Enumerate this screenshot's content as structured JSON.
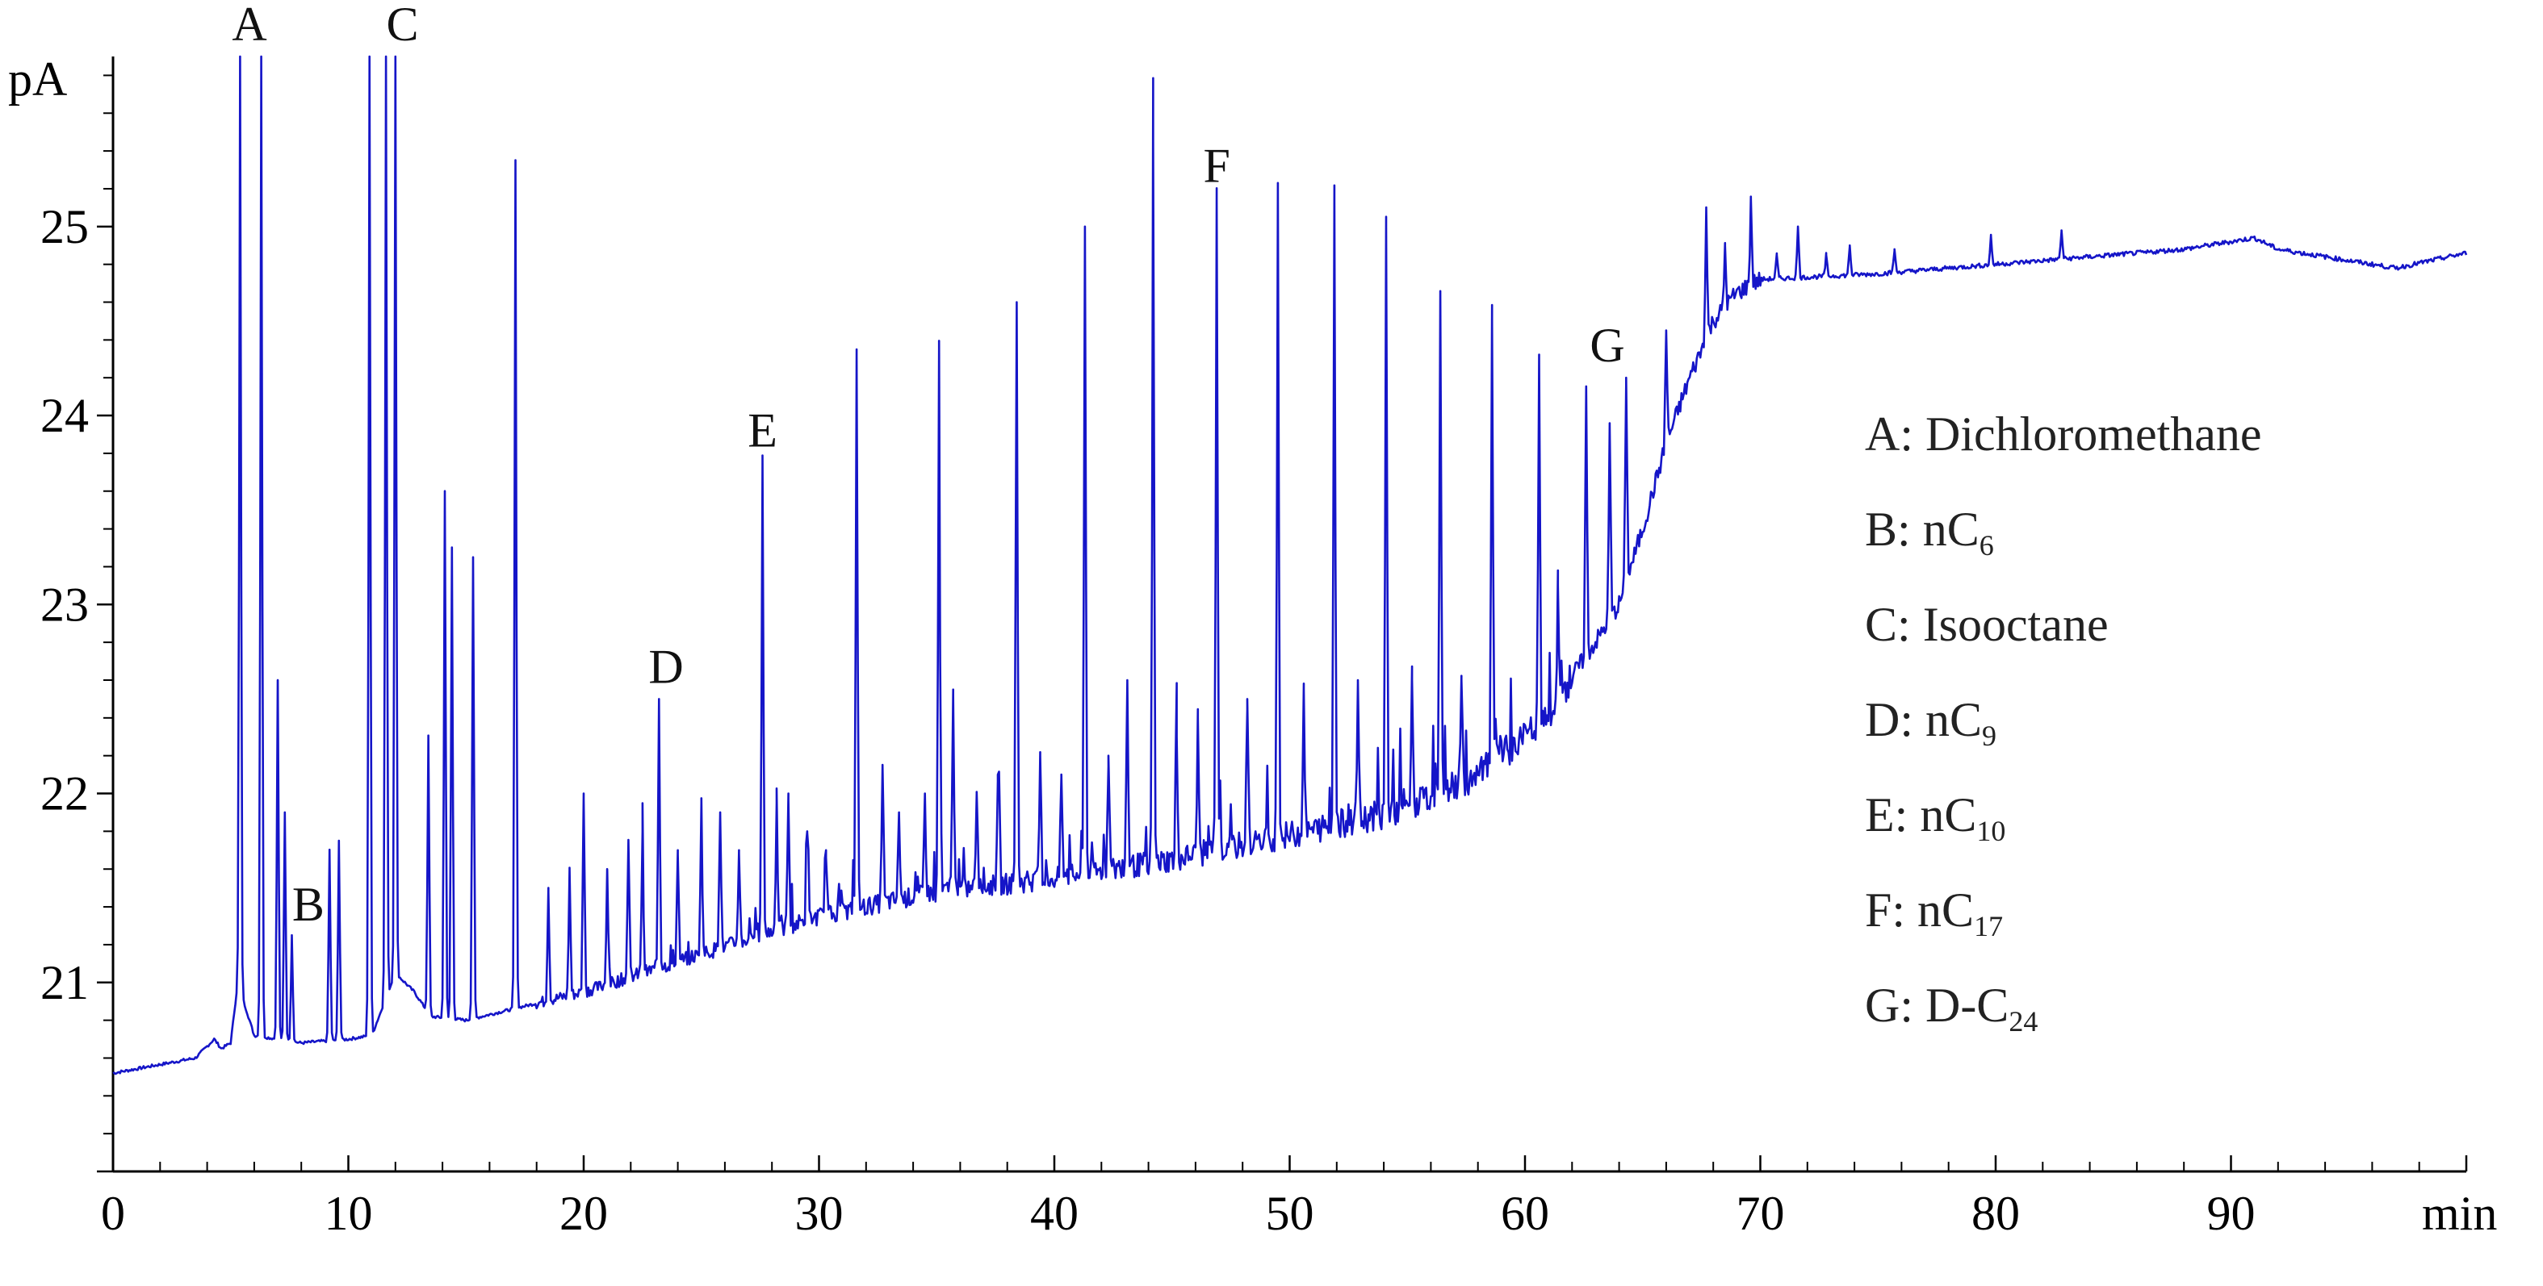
{
  "chart_data": {
    "type": "line",
    "title": "",
    "xlabel": "min",
    "ylabel": "pA",
    "xlim": [
      0,
      100
    ],
    "ylim": [
      20,
      25.9
    ],
    "x_ticks": [
      0,
      10,
      20,
      30,
      40,
      50,
      60,
      70,
      80,
      90
    ],
    "x_tick_labels": [
      "0",
      "10",
      "20",
      "30",
      "40",
      "50",
      "60",
      "70",
      "80",
      "90"
    ],
    "y_ticks": [
      21,
      22,
      23,
      24,
      25
    ],
    "y_tick_labels": [
      "21",
      "22",
      "23",
      "24",
      "25"
    ],
    "grid": false,
    "legend_position": "right",
    "series_color": "#1515c8",
    "baseline": [
      [
        0,
        20.52
      ],
      [
        3.5,
        20.6
      ],
      [
        4.3,
        20.7
      ],
      [
        4.6,
        20.65
      ],
      [
        5,
        20.68
      ],
      [
        5.3,
        21.0
      ],
      [
        6.0,
        20.72
      ],
      [
        8,
        20.68
      ],
      [
        10,
        20.7
      ],
      [
        11,
        20.72
      ],
      [
        12,
        21.05
      ],
      [
        12.8,
        20.95
      ],
      [
        13.5,
        20.82
      ],
      [
        15,
        20.8
      ],
      [
        20,
        20.95
      ],
      [
        25,
        21.15
      ],
      [
        30,
        21.35
      ],
      [
        35,
        21.48
      ],
      [
        40,
        21.55
      ],
      [
        45,
        21.65
      ],
      [
        50,
        21.78
      ],
      [
        55,
        21.92
      ],
      [
        58,
        22.1
      ],
      [
        60,
        22.3
      ],
      [
        61,
        22.38
      ],
      [
        62,
        22.62
      ],
      [
        63,
        22.8
      ],
      [
        64,
        23.0
      ],
      [
        65,
        23.4
      ],
      [
        66,
        23.85
      ],
      [
        67,
        24.2
      ],
      [
        68,
        24.5
      ],
      [
        69,
        24.65
      ],
      [
        70,
        24.72
      ],
      [
        75,
        24.75
      ],
      [
        80,
        24.8
      ],
      [
        85,
        24.85
      ],
      [
        88,
        24.88
      ],
      [
        91,
        24.94
      ],
      [
        92,
        24.88
      ],
      [
        95,
        24.82
      ],
      [
        97,
        24.78
      ],
      [
        100,
        24.86
      ]
    ],
    "peaks": [
      {
        "t": 5.4,
        "h": 25.9
      },
      {
        "t": 6.3,
        "h": 25.9
      },
      {
        "t": 7.0,
        "h": 22.6
      },
      {
        "t": 7.3,
        "h": 21.9
      },
      {
        "t": 7.6,
        "h": 21.25
      },
      {
        "t": 9.2,
        "h": 21.7
      },
      {
        "t": 9.6,
        "h": 21.75
      },
      {
        "t": 10.9,
        "h": 25.9
      },
      {
        "t": 11.6,
        "h": 25.9
      },
      {
        "t": 12.0,
        "h": 25.9
      },
      {
        "t": 13.4,
        "h": 22.3
      },
      {
        "t": 14.1,
        "h": 23.6
      },
      {
        "t": 14.4,
        "h": 23.3
      },
      {
        "t": 15.3,
        "h": 23.25
      },
      {
        "t": 17.1,
        "h": 25.35
      },
      {
        "t": 18.5,
        "h": 21.5
      },
      {
        "t": 19.4,
        "h": 21.6
      },
      {
        "t": 20.0,
        "h": 22.0
      },
      {
        "t": 21.0,
        "h": 21.6
      },
      {
        "t": 21.9,
        "h": 21.75
      },
      {
        "t": 22.5,
        "h": 21.8
      },
      {
        "t": 23.2,
        "h": 22.5
      },
      {
        "t": 24.0,
        "h": 21.7
      },
      {
        "t": 25.0,
        "h": 21.95
      },
      {
        "t": 25.8,
        "h": 21.9
      },
      {
        "t": 26.6,
        "h": 21.7
      },
      {
        "t": 27.6,
        "h": 23.75
      },
      {
        "t": 28.2,
        "h": 21.95
      },
      {
        "t": 28.7,
        "h": 22.0
      },
      {
        "t": 29.5,
        "h": 21.8
      },
      {
        "t": 30.3,
        "h": 21.7
      },
      {
        "t": 31.6,
        "h": 24.35
      },
      {
        "t": 32.7,
        "h": 22.15
      },
      {
        "t": 33.4,
        "h": 21.9
      },
      {
        "t": 34.5,
        "h": 22.0
      },
      {
        "t": 35.1,
        "h": 24.35
      },
      {
        "t": 35.7,
        "h": 22.55
      },
      {
        "t": 36.7,
        "h": 22.0
      },
      {
        "t": 37.6,
        "h": 22.1
      },
      {
        "t": 38.4,
        "h": 24.6
      },
      {
        "t": 39.4,
        "h": 22.2
      },
      {
        "t": 40.3,
        "h": 22.1
      },
      {
        "t": 41.3,
        "h": 25.0
      },
      {
        "t": 42.3,
        "h": 22.2
      },
      {
        "t": 43.1,
        "h": 22.6
      },
      {
        "t": 44.2,
        "h": 25.45
      },
      {
        "t": 45.2,
        "h": 22.3
      },
      {
        "t": 46.1,
        "h": 22.4
      },
      {
        "t": 46.9,
        "h": 25.15
      },
      {
        "t": 48.2,
        "h": 22.5
      },
      {
        "t": 49.5,
        "h": 25.2
      },
      {
        "t": 50.6,
        "h": 22.55
      },
      {
        "t": 51.9,
        "h": 25.15
      },
      {
        "t": 52.9,
        "h": 22.6
      },
      {
        "t": 54.1,
        "h": 25.0
      },
      {
        "t": 55.2,
        "h": 22.6
      },
      {
        "t": 56.4,
        "h": 24.65
      },
      {
        "t": 57.3,
        "h": 22.6
      },
      {
        "t": 58.6,
        "h": 24.5
      },
      {
        "t": 60.6,
        "h": 24.3
      },
      {
        "t": 61.4,
        "h": 23.1
      },
      {
        "t": 62.6,
        "h": 24.15
      },
      {
        "t": 63.6,
        "h": 23.95
      },
      {
        "t": 64.3,
        "h": 24.2
      },
      {
        "t": 66.0,
        "h": 24.45
      },
      {
        "t": 67.7,
        "h": 25.1
      },
      {
        "t": 68.5,
        "h": 24.9
      },
      {
        "t": 69.6,
        "h": 25.15
      },
      {
        "t": 70.7,
        "h": 24.85
      },
      {
        "t": 71.6,
        "h": 25.0
      },
      {
        "t": 72.8,
        "h": 24.85
      },
      {
        "t": 73.8,
        "h": 24.9
      },
      {
        "t": 75.7,
        "h": 24.88
      },
      {
        "t": 79.8,
        "h": 24.95
      },
      {
        "t": 82.8,
        "h": 24.98
      },
      {
        "t": 86.4,
        "h": 24.86
      }
    ],
    "peak_labels": [
      {
        "label": "A",
        "t": 5.8
      },
      {
        "label": "B",
        "t": 8.3
      },
      {
        "label": "C",
        "t": 12.3
      },
      {
        "label": "D",
        "t": 23.5
      },
      {
        "label": "E",
        "t": 27.6
      },
      {
        "label": "F",
        "t": 46.9
      },
      {
        "label": "G",
        "t": 63.5
      }
    ],
    "legend": [
      {
        "text": "A: Dichloromethane",
        "base": "A: Dichloromethane",
        "sub": ""
      },
      {
        "text": "B: nC6",
        "base": "B: nC",
        "sub": "6"
      },
      {
        "text": "C: Isooctane",
        "base": "C: Isooctane",
        "sub": ""
      },
      {
        "text": "D: nC9",
        "base": "D: nC",
        "sub": "9"
      },
      {
        "text": "E: nC10",
        "base": "E: nC",
        "sub": "10"
      },
      {
        "text": "F: nC17",
        "base": "F: nC",
        "sub": "17"
      },
      {
        "text": "G: D-C24",
        "base": "G: D-C",
        "sub": "24"
      }
    ]
  }
}
